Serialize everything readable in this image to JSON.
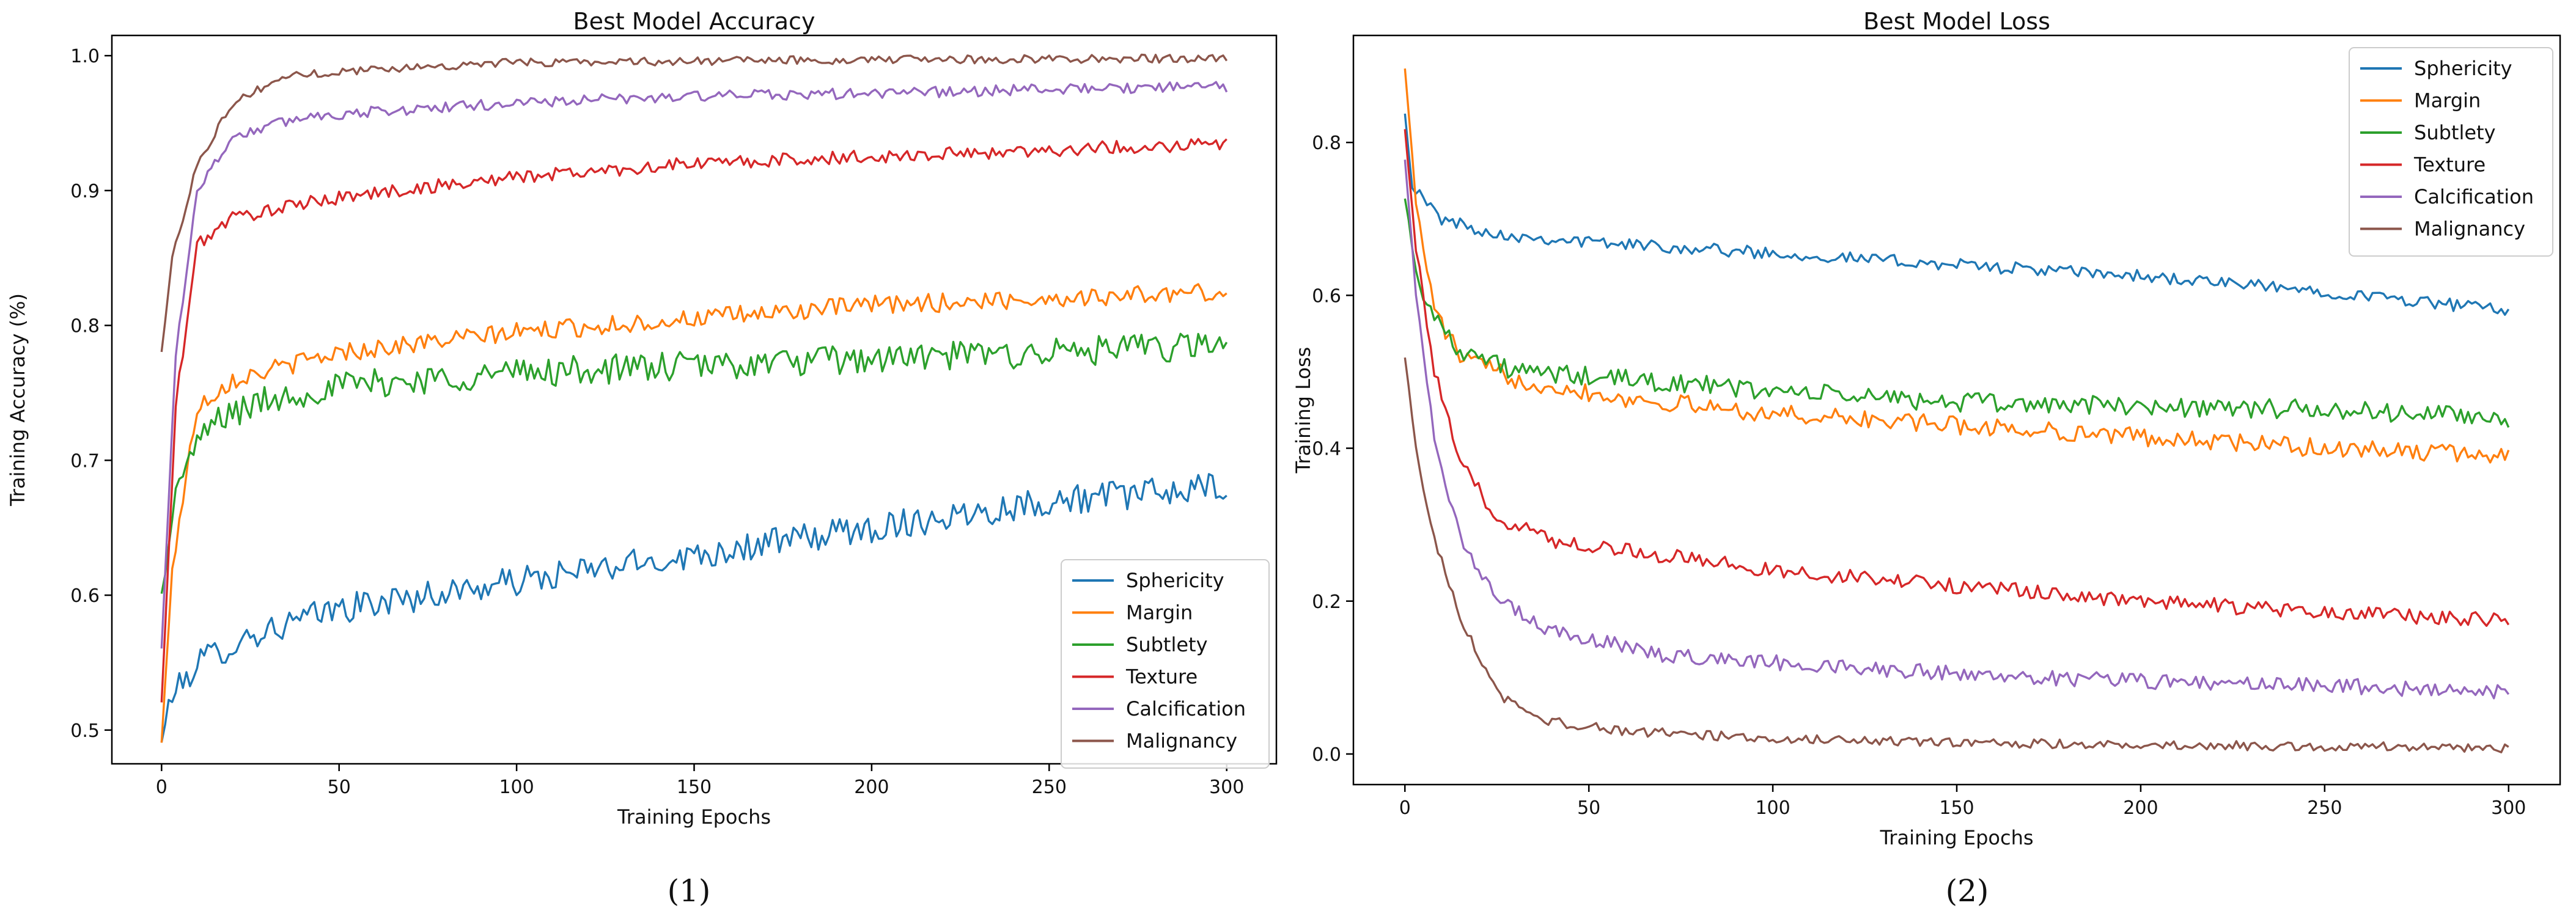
{
  "chart_data": [
    {
      "type": "line",
      "title": "Best Model Accuracy",
      "xlabel": "Training Epochs",
      "ylabel": "Training Accuracy (%)",
      "caption": "(1)",
      "xlim": [
        -14,
        314
      ],
      "ylim": [
        0.475,
        1.015
      ],
      "xticks": [
        0,
        50,
        100,
        150,
        200,
        250,
        300
      ],
      "yticks": [
        0.5,
        0.6,
        0.7,
        0.8,
        0.9,
        1.0
      ],
      "ytick_labels": [
        "0.5",
        "0.6",
        "0.7",
        "0.8",
        "0.9",
        "1.0"
      ],
      "legend_position": "lower-right",
      "epochs": 300,
      "series": [
        {
          "name": "Sphericity",
          "color": "#1f77b4",
          "anchors": [
            [
              0,
              0.49
            ],
            [
              2,
              0.52
            ],
            [
              10,
              0.55
            ],
            [
              25,
              0.57
            ],
            [
              50,
              0.59
            ],
            [
              100,
              0.61
            ],
            [
              150,
              0.63
            ],
            [
              200,
              0.65
            ],
            [
              250,
              0.67
            ],
            [
              300,
              0.68
            ]
          ],
          "noise": 0.011
        },
        {
          "name": "Margin",
          "color": "#ff7f0e",
          "anchors": [
            [
              0,
              0.49
            ],
            [
              3,
              0.62
            ],
            [
              10,
              0.74
            ],
            [
              20,
              0.76
            ],
            [
              50,
              0.78
            ],
            [
              100,
              0.795
            ],
            [
              150,
              0.805
            ],
            [
              200,
              0.815
            ],
            [
              250,
              0.82
            ],
            [
              300,
              0.825
            ]
          ],
          "noise": 0.007
        },
        {
          "name": "Subtlety",
          "color": "#2ca02c",
          "anchors": [
            [
              0,
              0.6
            ],
            [
              5,
              0.69
            ],
            [
              15,
              0.73
            ],
            [
              30,
              0.745
            ],
            [
              50,
              0.755
            ],
            [
              100,
              0.765
            ],
            [
              150,
              0.77
            ],
            [
              200,
              0.775
            ],
            [
              250,
              0.78
            ],
            [
              300,
              0.785
            ]
          ],
          "noise": 0.011
        },
        {
          "name": "Texture",
          "color": "#d62728",
          "anchors": [
            [
              0,
              0.52
            ],
            [
              4,
              0.74
            ],
            [
              10,
              0.86
            ],
            [
              20,
              0.88
            ],
            [
              50,
              0.895
            ],
            [
              100,
              0.91
            ],
            [
              150,
              0.92
            ],
            [
              200,
              0.925
            ],
            [
              250,
              0.93
            ],
            [
              300,
              0.935
            ]
          ],
          "noise": 0.005
        },
        {
          "name": "Calcification",
          "color": "#9467bd",
          "anchors": [
            [
              0,
              0.56
            ],
            [
              4,
              0.78
            ],
            [
              10,
              0.9
            ],
            [
              20,
              0.94
            ],
            [
              40,
              0.955
            ],
            [
              100,
              0.965
            ],
            [
              150,
              0.97
            ],
            [
              200,
              0.972
            ],
            [
              250,
              0.975
            ],
            [
              300,
              0.977
            ]
          ],
          "noise": 0.004
        },
        {
          "name": "Malignancy",
          "color": "#8c564b",
          "anchors": [
            [
              0,
              0.78
            ],
            [
              3,
              0.85
            ],
            [
              10,
              0.92
            ],
            [
              20,
              0.965
            ],
            [
              35,
              0.985
            ],
            [
              60,
              0.99
            ],
            [
              100,
              0.995
            ],
            [
              200,
              0.997
            ],
            [
              300,
              0.998
            ]
          ],
          "noise": 0.003
        }
      ]
    },
    {
      "type": "line",
      "title": "Best Model Loss",
      "xlabel": "Training Epochs",
      "ylabel": "Training Loss",
      "caption": "(2)",
      "xlim": [
        -14,
        314
      ],
      "ylim": [
        -0.04,
        0.94
      ],
      "xticks": [
        0,
        50,
        100,
        150,
        200,
        250,
        300
      ],
      "yticks": [
        0.0,
        0.2,
        0.4,
        0.6,
        0.8
      ],
      "ytick_labels": [
        "0.0",
        "0.2",
        "0.4",
        "0.6",
        "0.8"
      ],
      "legend_position": "top-right",
      "epochs": 300,
      "series": [
        {
          "name": "Sphericity",
          "color": "#1f77b4",
          "anchors": [
            [
              0,
              0.84
            ],
            [
              2,
              0.74
            ],
            [
              10,
              0.7
            ],
            [
              25,
              0.68
            ],
            [
              50,
              0.67
            ],
            [
              100,
              0.655
            ],
            [
              150,
              0.64
            ],
            [
              200,
              0.625
            ],
            [
              250,
              0.605
            ],
            [
              300,
              0.58
            ]
          ],
          "noise": 0.008
        },
        {
          "name": "Margin",
          "color": "#ff7f0e",
          "anchors": [
            [
              0,
              0.9
            ],
            [
              3,
              0.72
            ],
            [
              8,
              0.58
            ],
            [
              15,
              0.52
            ],
            [
              30,
              0.49
            ],
            [
              60,
              0.465
            ],
            [
              100,
              0.445
            ],
            [
              150,
              0.43
            ],
            [
              200,
              0.415
            ],
            [
              250,
              0.4
            ],
            [
              300,
              0.39
            ]
          ],
          "noise": 0.012
        },
        {
          "name": "Subtlety",
          "color": "#2ca02c",
          "anchors": [
            [
              0,
              0.73
            ],
            [
              3,
              0.63
            ],
            [
              8,
              0.57
            ],
            [
              15,
              0.53
            ],
            [
              30,
              0.5
            ],
            [
              60,
              0.49
            ],
            [
              100,
              0.475
            ],
            [
              150,
              0.46
            ],
            [
              200,
              0.455
            ],
            [
              250,
              0.45
            ],
            [
              300,
              0.44
            ]
          ],
          "noise": 0.013
        },
        {
          "name": "Texture",
          "color": "#d62728",
          "anchors": [
            [
              0,
              0.82
            ],
            [
              3,
              0.66
            ],
            [
              8,
              0.5
            ],
            [
              15,
              0.38
            ],
            [
              25,
              0.31
            ],
            [
              40,
              0.28
            ],
            [
              70,
              0.26
            ],
            [
              100,
              0.24
            ],
            [
              150,
              0.22
            ],
            [
              200,
              0.2
            ],
            [
              250,
              0.185
            ],
            [
              300,
              0.175
            ]
          ],
          "noise": 0.01
        },
        {
          "name": "Calcification",
          "color": "#9467bd",
          "anchors": [
            [
              0,
              0.78
            ],
            [
              3,
              0.6
            ],
            [
              8,
              0.42
            ],
            [
              15,
              0.28
            ],
            [
              25,
              0.2
            ],
            [
              40,
              0.16
            ],
            [
              70,
              0.13
            ],
            [
              100,
              0.12
            ],
            [
              150,
              0.105
            ],
            [
              200,
              0.095
            ],
            [
              250,
              0.09
            ],
            [
              300,
              0.08
            ]
          ],
          "noise": 0.01
        },
        {
          "name": "Malignancy",
          "color": "#8c564b",
          "anchors": [
            [
              0,
              0.52
            ],
            [
              3,
              0.4
            ],
            [
              8,
              0.28
            ],
            [
              15,
              0.18
            ],
            [
              25,
              0.08
            ],
            [
              35,
              0.045
            ],
            [
              60,
              0.03
            ],
            [
              100,
              0.02
            ],
            [
              150,
              0.015
            ],
            [
              200,
              0.012
            ],
            [
              300,
              0.008
            ]
          ],
          "noise": 0.006
        }
      ]
    }
  ]
}
